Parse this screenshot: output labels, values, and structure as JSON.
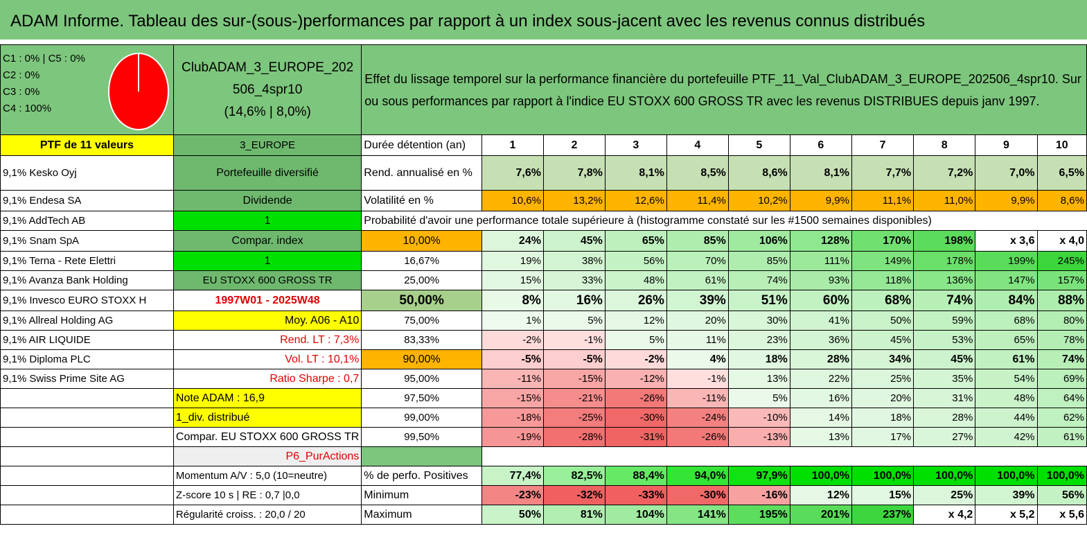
{
  "title": "ADAM Informe. Tableau des sur-(sous-)performances par rapport à un index sous-jacent avec les revenus connus distribués",
  "pie": {
    "legend": [
      "C1 : 0% | C5 : 0%",
      "C2 : 0%",
      "C3 : 0%",
      "C4 : 100%"
    ],
    "color": "#ff0000"
  },
  "portfolio_name": [
    "ClubADAM_3_EUROPE_202",
    "506_4spr10",
    "(14,6% | 8,0%)"
  ],
  "description": [
    "Effet du lissage temporel sur la performance financière du portefeuille PTF_11_Val_ClubADAM_3_EUROPE_202506_4spr10. Sur",
    "ou sous performances par rapport à l'indice EU STOXX 600 GROSS TR avec les revenus DISTRIBUES depuis janv 1997."
  ],
  "ptf_header": "PTF de 11 valeurs",
  "region": "3_EUROPE",
  "duration_label": "Durée détention (an)",
  "years": [
    "1",
    "2",
    "3",
    "4",
    "5",
    "6",
    "7",
    "8",
    "9",
    "10"
  ],
  "holdings": [
    "9,1% Kesko Oyj",
    "9,1% Endesa SA",
    "9,1% AddTech AB",
    "9,1% Snam SpA",
    "9,1% Terna - Rete Elettri",
    "9,1% Avanza Bank Holding",
    "9,1% Invesco EURO STOXX H",
    "9,1% Allreal Holding AG",
    "9,1% AIR LIQUIDE",
    "9,1% Diploma PLC",
    "9,1% Swiss Prime Site AG"
  ],
  "info": {
    "diversified": "Portefeuille diversifié",
    "dividend": "Dividende",
    "one_a": "1",
    "compar_index": "Compar. index",
    "one_b": "1",
    "index_name": "EU STOXX 600 GROSS TR",
    "period": "1997W01 - 2025W48",
    "moy": "Moy. A06 - A10",
    "rend_lt": "Rend. LT : 7,3%",
    "vol_lt": "Vol. LT : 10,1%",
    "sharpe": "Ratio Sharpe : 0,7",
    "note": "Note ADAM : 16,9",
    "div": "1_div. distribué",
    "compar": "Compar. EU STOXX 600 GROSS TR",
    "p6": "P6_PurActions",
    "momentum": "Momentum A/V : 5,0 (10=neutre)",
    "zscore": "Z-score 10 s | RE : 0,7 |0,0",
    "regularity": "Régularité croiss. : 20,0 / 20"
  },
  "rend_label": "Rend. annualisé en %",
  "rend_values": [
    "7,6%",
    "7,8%",
    "8,1%",
    "8,5%",
    "8,6%",
    "8,1%",
    "7,7%",
    "7,2%",
    "7,0%",
    "6,5%"
  ],
  "vol_label": "Volatilité en %",
  "vol_values": [
    "10,6%",
    "13,2%",
    "12,6%",
    "11,4%",
    "10,2%",
    "9,9%",
    "11,1%",
    "11,0%",
    "9,9%",
    "8,6%"
  ],
  "proba_title": "Probabilité d'avoir une performance totale supérieure à (histogramme constaté sur les #1500 semaines disponibles)",
  "quantiles": [
    {
      "label": "10,00%",
      "values": [
        "24%",
        "45%",
        "65%",
        "85%",
        "106%",
        "128%",
        "170%",
        "198%",
        "x 3,6",
        "x 4,0"
      ]
    },
    {
      "label": "16,67%",
      "values": [
        "19%",
        "38%",
        "56%",
        "70%",
        "85%",
        "111%",
        "149%",
        "178%",
        "199%",
        "245%"
      ]
    },
    {
      "label": "25,00%",
      "values": [
        "15%",
        "33%",
        "48%",
        "61%",
        "74%",
        "93%",
        "118%",
        "136%",
        "147%",
        "157%"
      ]
    },
    {
      "label": "50,00%",
      "values": [
        "8%",
        "16%",
        "26%",
        "39%",
        "51%",
        "60%",
        "68%",
        "74%",
        "84%",
        "88%"
      ]
    },
    {
      "label": "75,00%",
      "values": [
        "1%",
        "5%",
        "12%",
        "20%",
        "30%",
        "41%",
        "50%",
        "59%",
        "68%",
        "80%"
      ]
    },
    {
      "label": "83,33%",
      "values": [
        "-2%",
        "-1%",
        "5%",
        "11%",
        "23%",
        "36%",
        "45%",
        "53%",
        "65%",
        "78%"
      ]
    },
    {
      "label": "90,00%",
      "values": [
        "-5%",
        "-5%",
        "-2%",
        "4%",
        "18%",
        "28%",
        "34%",
        "45%",
        "61%",
        "74%"
      ]
    },
    {
      "label": "95,00%",
      "values": [
        "-11%",
        "-15%",
        "-12%",
        "-1%",
        "13%",
        "22%",
        "25%",
        "35%",
        "54%",
        "69%"
      ]
    },
    {
      "label": "97,50%",
      "values": [
        "-15%",
        "-21%",
        "-26%",
        "-11%",
        "5%",
        "16%",
        "20%",
        "31%",
        "48%",
        "64%"
      ]
    },
    {
      "label": "99,00%",
      "values": [
        "-18%",
        "-25%",
        "-30%",
        "-24%",
        "-10%",
        "14%",
        "18%",
        "28%",
        "44%",
        "62%"
      ]
    },
    {
      "label": "99,50%",
      "values": [
        "-19%",
        "-28%",
        "-31%",
        "-26%",
        "-13%",
        "13%",
        "17%",
        "27%",
        "42%",
        "61%"
      ]
    }
  ],
  "stats": [
    {
      "label": "% de perfo. Positives",
      "values": [
        "77,4%",
        "82,5%",
        "88,4%",
        "94,0%",
        "97,9%",
        "100,0%",
        "100,0%",
        "100,0%",
        "100,0%",
        "100,0%"
      ]
    },
    {
      "label": "Minimum",
      "values": [
        "-23%",
        "-32%",
        "-33%",
        "-30%",
        "-16%",
        "12%",
        "15%",
        "25%",
        "39%",
        "56%"
      ]
    },
    {
      "label": "Maximum",
      "values": [
        "50%",
        "81%",
        "104%",
        "141%",
        "195%",
        "201%",
        "237%",
        "x 4,2",
        "x 5,2",
        "x 5,6"
      ]
    }
  ],
  "colors": {
    "title_bg": "#7dc67d",
    "yellow": "#ffff00",
    "bright_green": "#00e000",
    "orange": "#ffb400",
    "rend_green": "#c6e0b4"
  }
}
